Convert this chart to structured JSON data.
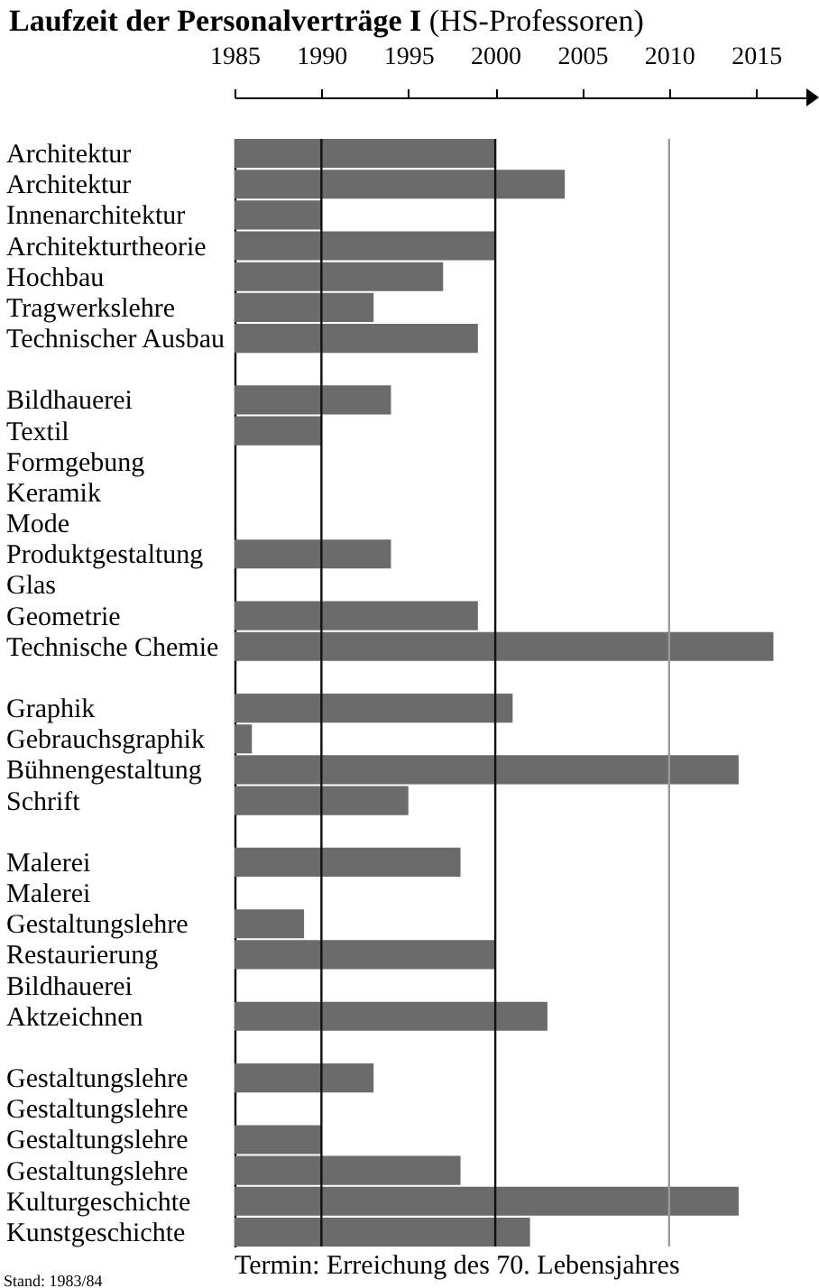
{
  "chart_data": {
    "type": "bar",
    "orientation": "horizontal",
    "title": "Laufzeit der Personalverträge I",
    "subtitle": "(HS-Professoren)",
    "categories": [
      "Architektur",
      "Architektur",
      "Innenarchitektur",
      "Architekturtheorie",
      "Hochbau",
      "Tragwerkslehre",
      "Technischer Ausbau",
      null,
      "Bildhauerei",
      "Textil",
      "Formgebung",
      "Keramik",
      "Mode",
      "Produktgestaltung",
      "Glas",
      "Geometrie",
      "Technische Chemie",
      null,
      "Graphik",
      "Gebrauchsgraphik",
      "Bühnengestaltung",
      "Schrift",
      null,
      "Malerei",
      "Malerei",
      "Gestaltungslehre",
      "Restaurierung",
      "Bildhauerei",
      "Aktzeichnen",
      null,
      "Gestaltungslehre",
      "Gestaltungslehre",
      "Gestaltungslehre",
      "Gestaltungslehre",
      "Kulturgeschichte",
      "Kunstgeschichte"
    ],
    "values": [
      2000,
      2004,
      1990,
      2000,
      1997,
      1993,
      1999,
      null,
      1994,
      1990,
      null,
      null,
      null,
      1994,
      null,
      1999,
      2016,
      null,
      2001,
      1986,
      2014,
      1995,
      null,
      1998,
      null,
      1989,
      2000,
      null,
      2003,
      null,
      1993,
      null,
      1990,
      1998,
      2014,
      2002
    ],
    "color": "#6b6b6b",
    "xlim": [
      1985,
      2018
    ],
    "xticks": [
      1985,
      1990,
      1995,
      2000,
      2005,
      2010,
      2015
    ],
    "ref_lines": [
      {
        "axis": "x",
        "value": 1990,
        "color": "#111111"
      },
      {
        "axis": "x",
        "value": 2000,
        "color": "#111111"
      },
      {
        "axis": "x",
        "value": 2010,
        "color": "#9a9a9a"
      }
    ],
    "annotations": [
      "Stand: 1983/84",
      "Termin: Erreichung des 70. Lebensjahres"
    ]
  }
}
